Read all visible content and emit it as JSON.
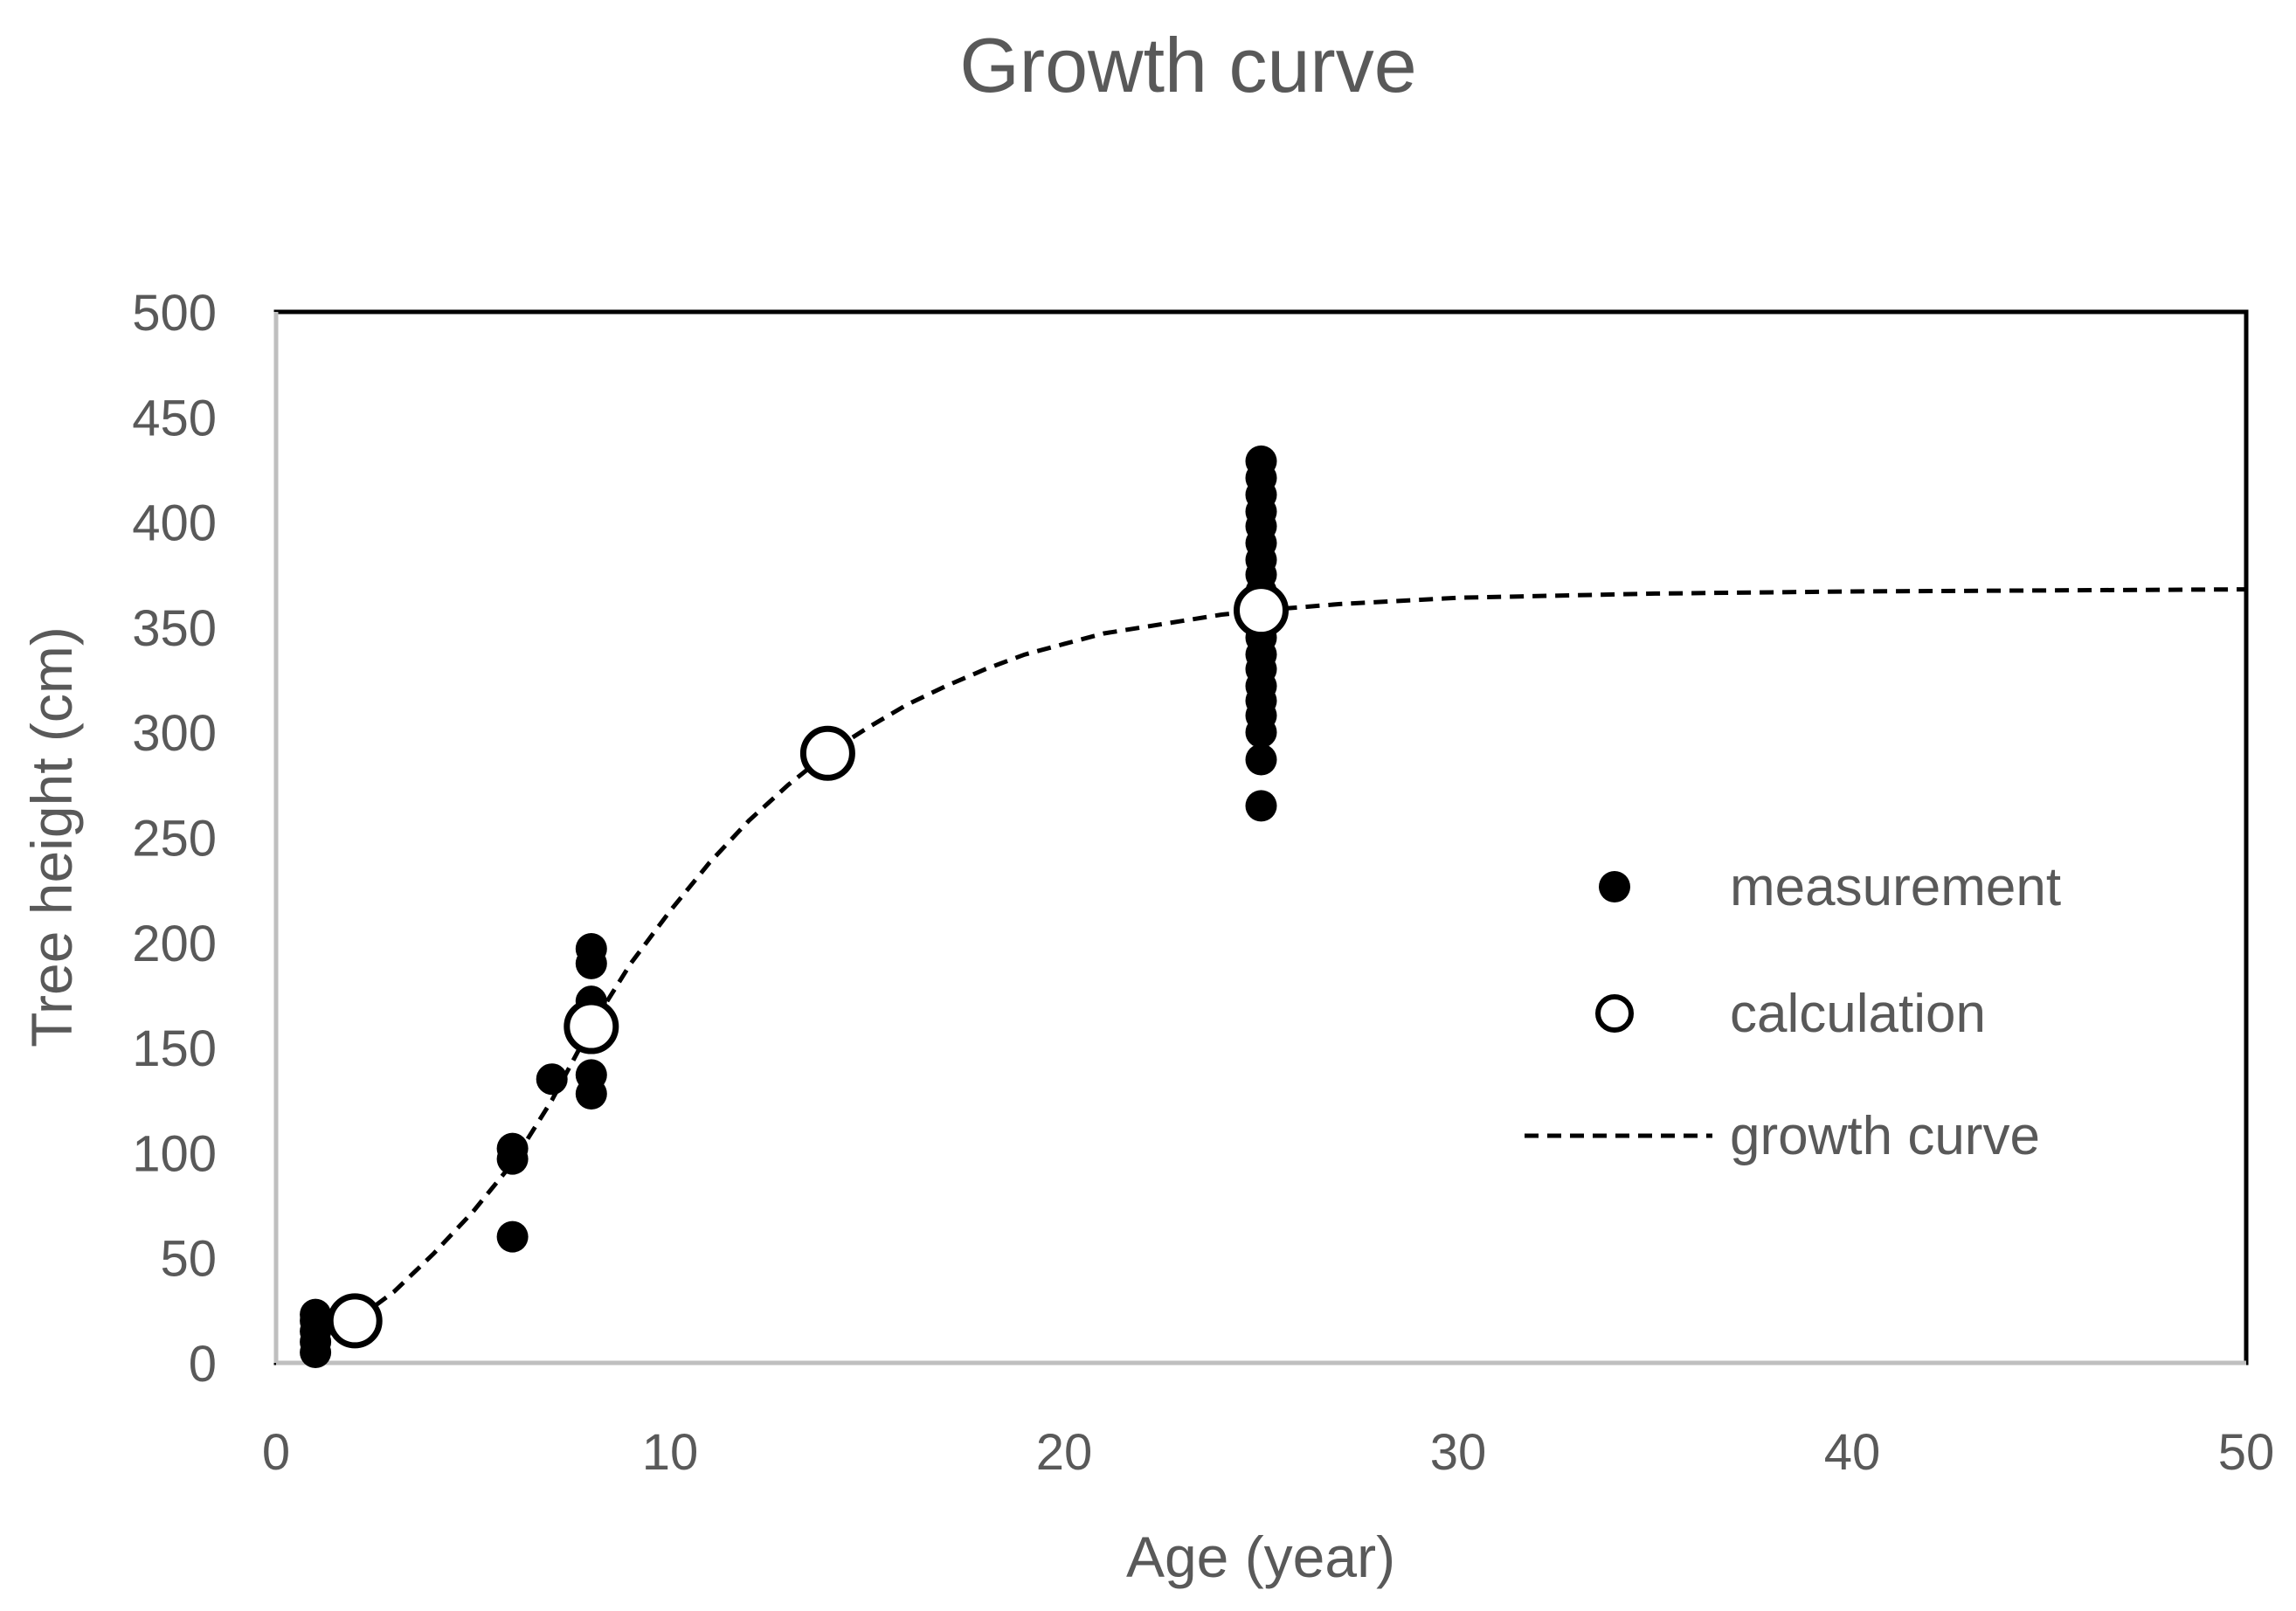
{
  "chart_data": {
    "type": "scatter",
    "title": "Growth curve",
    "xlabel": "Age (year)",
    "ylabel": "Tree height (cm)",
    "xlim": [
      0,
      50
    ],
    "ylim": [
      0,
      500
    ],
    "xticks": [
      0,
      10,
      20,
      30,
      40,
      50
    ],
    "yticks": [
      0,
      50,
      100,
      150,
      200,
      250,
      300,
      350,
      400,
      450,
      500
    ],
    "grid": false,
    "legend_position": "right",
    "series": [
      {
        "name": "measurement",
        "kind": "filled-marker",
        "points": [
          {
            "x": 1,
            "y": 5
          },
          {
            "x": 1,
            "y": 10
          },
          {
            "x": 1,
            "y": 15
          },
          {
            "x": 1,
            "y": 20
          },
          {
            "x": 1,
            "y": 23
          },
          {
            "x": 6,
            "y": 60
          },
          {
            "x": 6,
            "y": 97
          },
          {
            "x": 6,
            "y": 102
          },
          {
            "x": 7,
            "y": 135
          },
          {
            "x": 8,
            "y": 128
          },
          {
            "x": 8,
            "y": 137
          },
          {
            "x": 8,
            "y": 165
          },
          {
            "x": 8,
            "y": 172
          },
          {
            "x": 8,
            "y": 190
          },
          {
            "x": 8,
            "y": 197
          },
          {
            "x": 25,
            "y": 265
          },
          {
            "x": 25,
            "y": 287
          },
          {
            "x": 25,
            "y": 300
          },
          {
            "x": 25,
            "y": 308
          },
          {
            "x": 25,
            "y": 315
          },
          {
            "x": 25,
            "y": 322
          },
          {
            "x": 25,
            "y": 330
          },
          {
            "x": 25,
            "y": 337
          },
          {
            "x": 25,
            "y": 345
          },
          {
            "x": 25,
            "y": 352
          },
          {
            "x": 25,
            "y": 360
          },
          {
            "x": 25,
            "y": 367
          },
          {
            "x": 25,
            "y": 375
          },
          {
            "x": 25,
            "y": 382
          },
          {
            "x": 25,
            "y": 390
          },
          {
            "x": 25,
            "y": 398
          },
          {
            "x": 25,
            "y": 405
          },
          {
            "x": 25,
            "y": 413
          },
          {
            "x": 25,
            "y": 421
          },
          {
            "x": 25,
            "y": 429
          }
        ]
      },
      {
        "name": "calculation",
        "kind": "open-marker",
        "points": [
          {
            "x": 2,
            "y": 20
          },
          {
            "x": 8,
            "y": 160
          },
          {
            "x": 14,
            "y": 290
          },
          {
            "x": 25,
            "y": 358
          }
        ]
      },
      {
        "name": "growth curve",
        "kind": "dashed-line",
        "points": [
          {
            "x": 1,
            "y": 12
          },
          {
            "x": 2,
            "y": 20
          },
          {
            "x": 3,
            "y": 34
          },
          {
            "x": 4,
            "y": 52
          },
          {
            "x": 5,
            "y": 72
          },
          {
            "x": 6,
            "y": 95
          },
          {
            "x": 7,
            "y": 125
          },
          {
            "x": 8,
            "y": 160
          },
          {
            "x": 9,
            "y": 190
          },
          {
            "x": 10,
            "y": 215
          },
          {
            "x": 11,
            "y": 238
          },
          {
            "x": 12,
            "y": 258
          },
          {
            "x": 13,
            "y": 275
          },
          {
            "x": 14,
            "y": 290
          },
          {
            "x": 15,
            "y": 302
          },
          {
            "x": 16,
            "y": 313
          },
          {
            "x": 17,
            "y": 322
          },
          {
            "x": 18,
            "y": 330
          },
          {
            "x": 19,
            "y": 337
          },
          {
            "x": 20,
            "y": 342
          },
          {
            "x": 21,
            "y": 347
          },
          {
            "x": 22,
            "y": 350
          },
          {
            "x": 23,
            "y": 353
          },
          {
            "x": 24,
            "y": 356
          },
          {
            "x": 25,
            "y": 358
          },
          {
            "x": 27,
            "y": 361
          },
          {
            "x": 30,
            "y": 364
          },
          {
            "x": 35,
            "y": 366
          },
          {
            "x": 40,
            "y": 367
          },
          {
            "x": 45,
            "y": 367.5
          },
          {
            "x": 50,
            "y": 368
          }
        ]
      }
    ]
  }
}
